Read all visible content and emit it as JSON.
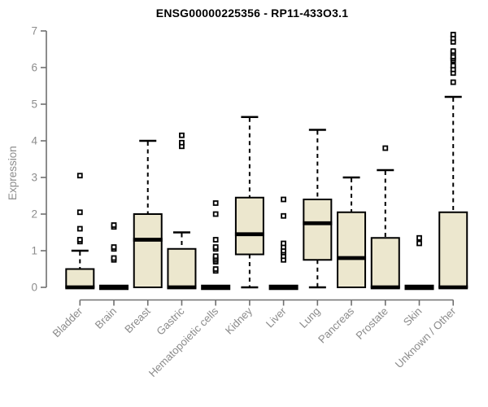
{
  "colors": {
    "background": "#FFFFFF",
    "box_fill": "#ECE7CE",
    "box_border": "#000000",
    "median": "#000000",
    "whisker": "#000000",
    "outlier_fill": "#FFFFFF",
    "axis_line": "#707070",
    "tick_text": "#8C8C8C",
    "title_text": "#000000"
  },
  "chart_data": {
    "type": "boxplot",
    "title": "ENSG00000225356 - RP11-433O3.1",
    "ylabel": "Expression",
    "xlabel": "",
    "ylim": [
      0,
      7
    ],
    "yticks": [
      0,
      1,
      2,
      3,
      4,
      5,
      6,
      7
    ],
    "grid": false,
    "legend": "none",
    "categories": [
      "Bladder",
      "Brain",
      "Breast",
      "Gastric",
      "Hematopoietic cells",
      "Kidney",
      "Liver",
      "Lung",
      "Pancreas",
      "Prostate",
      "Skin",
      "Unknown / Other"
    ],
    "series": [
      {
        "name": "Bladder",
        "q1": 0,
        "median": 0,
        "q3": 0.5,
        "whisker_low": 0,
        "whisker_high": 1.0,
        "outliers": [
          1.25,
          1.3,
          1.6,
          2.05,
          3.05
        ]
      },
      {
        "name": "Brain",
        "q1": 0,
        "median": 0,
        "q3": 0,
        "whisker_low": 0,
        "whisker_high": 0,
        "outliers": [
          0.75,
          0.8,
          1.05,
          1.1,
          1.65,
          1.7
        ]
      },
      {
        "name": "Breast",
        "q1": 0,
        "median": 1.3,
        "q3": 2.0,
        "whisker_low": 0,
        "whisker_high": 4.0,
        "outliers": []
      },
      {
        "name": "Gastric",
        "q1": 0,
        "median": 0,
        "q3": 1.05,
        "whisker_low": 0,
        "whisker_high": 1.5,
        "outliers": [
          3.85,
          3.95,
          4.15
        ]
      },
      {
        "name": "Hematopoietic cells",
        "q1": 0,
        "median": 0,
        "q3": 0,
        "whisker_low": 0,
        "whisker_high": 0,
        "outliers": [
          0.45,
          0.5,
          0.7,
          0.75,
          0.8,
          0.85,
          1.05,
          1.1,
          1.3,
          2.0,
          2.3
        ]
      },
      {
        "name": "Kidney",
        "q1": 0.9,
        "median": 1.45,
        "q3": 2.45,
        "whisker_low": 0,
        "whisker_high": 4.65,
        "outliers": []
      },
      {
        "name": "Liver",
        "q1": 0,
        "median": 0,
        "q3": 0,
        "whisker_low": 0,
        "whisker_high": 0,
        "outliers": [
          0.75,
          0.85,
          0.95,
          1.0,
          1.1,
          1.2,
          1.95,
          2.4
        ]
      },
      {
        "name": "Lung",
        "q1": 0.75,
        "median": 1.75,
        "q3": 2.4,
        "whisker_low": 0,
        "whisker_high": 4.3,
        "outliers": []
      },
      {
        "name": "Pancreas",
        "q1": 0,
        "median": 0.8,
        "q3": 2.05,
        "whisker_low": 0,
        "whisker_high": 3.0,
        "outliers": []
      },
      {
        "name": "Prostate",
        "q1": 0,
        "median": 0,
        "q3": 1.35,
        "whisker_low": 0,
        "whisker_high": 3.2,
        "outliers": [
          3.8
        ]
      },
      {
        "name": "Skin",
        "q1": 0,
        "median": 0,
        "q3": 0,
        "whisker_low": 0,
        "whisker_high": 0,
        "outliers": [
          1.2,
          1.35
        ]
      },
      {
        "name": "Unknown / Other",
        "q1": 0,
        "median": 0,
        "q3": 2.05,
        "whisker_low": 0,
        "whisker_high": 5.2,
        "outliers": [
          5.6,
          5.85,
          5.95,
          6.05,
          6.2,
          6.25,
          6.3,
          6.4,
          6.45,
          6.7,
          6.8,
          6.9
        ]
      }
    ]
  }
}
